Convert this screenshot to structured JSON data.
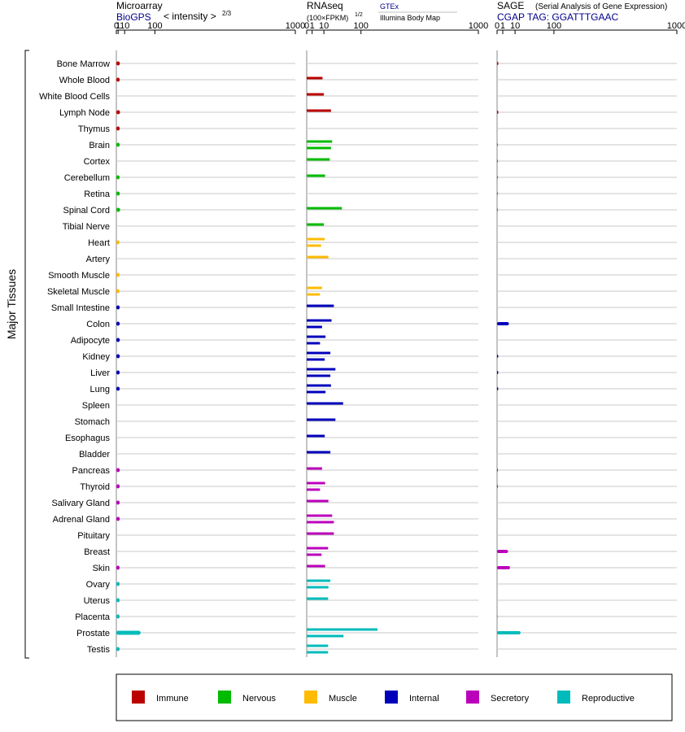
{
  "chart_data": {
    "type": "bar",
    "orientation": "horizontal",
    "scale": "power",
    "y_axis_label": "Major Tissues",
    "tissues": [
      "Bone Marrow",
      "Whole Blood",
      "White Blood Cells",
      "Lymph Node",
      "Thymus",
      "Brain",
      "Cortex",
      "Cerebellum",
      "Retina",
      "Spinal Cord",
      "Tibial Nerve",
      "Heart",
      "Artery",
      "Smooth Muscle",
      "Skeletal Muscle",
      "Small Intestine",
      "Colon",
      "Adipocyte",
      "Kidney",
      "Liver",
      "Lung",
      "Spleen",
      "Stomach",
      "Esophagus",
      "Bladder",
      "Pancreas",
      "Thyroid",
      "Salivary Gland",
      "Adrenal Gland",
      "Pituitary",
      "Breast",
      "Skin",
      "Ovary",
      "Uterus",
      "Placenta",
      "Prostate",
      "Testis"
    ],
    "tissue_category": [
      "Immune",
      "Immune",
      "Immune",
      "Immune",
      "Immune",
      "Nervous",
      "Nervous",
      "Nervous",
      "Nervous",
      "Nervous",
      "Nervous",
      "Muscle",
      "Muscle",
      "Muscle",
      "Muscle",
      "Internal",
      "Internal",
      "Internal",
      "Internal",
      "Internal",
      "Internal",
      "Internal",
      "Internal",
      "Internal",
      "Internal",
      "Secretory",
      "Secretory",
      "Secretory",
      "Secretory",
      "Secretory",
      "Secretory",
      "Secretory",
      "Reproductive",
      "Reproductive",
      "Reproductive",
      "Reproductive",
      "Reproductive"
    ],
    "legend": [
      {
        "name": "Immune",
        "color": "#bb0000"
      },
      {
        "name": "Nervous",
        "color": "#00bb00"
      },
      {
        "name": "Muscle",
        "color": "#ffbb00"
      },
      {
        "name": "Internal",
        "color": "#0000bb"
      },
      {
        "name": "Secretory",
        "color": "#bb00bb"
      },
      {
        "name": "Reproductive",
        "color": "#00bbbb"
      }
    ],
    "panels": [
      {
        "id": "microarray",
        "title": "Microarray",
        "source": "BioGPS",
        "unit_text": "< intensity >",
        "exponent_text": "2/3",
        "power": 0.6667,
        "ticks": [
          0,
          1,
          10,
          100,
          1000
        ],
        "tick_labels": [
          "0",
          "1",
          "10",
          "100",
          "1000"
        ],
        "xlim": [
          0,
          1000
        ],
        "values": [
          [
            2.8
          ],
          [
            2.6
          ],
          [],
          [
            3.0
          ],
          [
            2.6
          ],
          [
            2.6
          ],
          [],
          [
            2.5
          ],
          [
            2.7
          ],
          [
            3.1
          ],
          [],
          [
            2.3
          ],
          [],
          [
            2.5
          ],
          [
            2.4
          ],
          [
            2.6
          ],
          [
            2.6
          ],
          [
            2.7
          ],
          [
            2.7
          ],
          [
            2.6
          ],
          [
            2.6
          ],
          [],
          [],
          [],
          [],
          [
            2.7
          ],
          [
            2.6
          ],
          [
            2.6
          ],
          [
            2.7
          ],
          [],
          [],
          [
            2.5
          ],
          [
            2.5
          ],
          [
            2.5
          ],
          [
            2.5
          ],
          [
            50
          ],
          [
            2.5
          ]
        ]
      },
      {
        "id": "rnaseq",
        "title": "RNAseq",
        "unit_text": "(100×FPKM)",
        "exponent_text": "1/2",
        "source_top": "GTEx",
        "source_bottom": "Illumina Body Map",
        "power": 0.5,
        "ticks": [
          0,
          1,
          10,
          100,
          1000
        ],
        "tick_labels": [
          "0",
          "1",
          "10",
          "100",
          "1000"
        ],
        "xlim": [
          0,
          1000
        ],
        "values": [
          [],
          [
            8.5
          ],
          [
            10
          ],
          [
            20
          ],
          [],
          [
            22,
            20
          ],
          [
            18
          ],
          [
            11.5
          ],
          [],
          [
            42
          ],
          [
            10
          ],
          [
            11,
            7
          ],
          [
            16
          ],
          [],
          [
            8,
            6
          ],
          [
            25
          ],
          [
            21,
            8
          ],
          [
            12,
            6
          ],
          [
            19,
            11
          ],
          [
            28,
            19
          ],
          [
            20,
            12
          ],
          [
            45
          ],
          [
            28
          ],
          [
            11
          ],
          [
            19
          ],
          [
            8
          ],
          [
            11.5,
            6
          ],
          [
            16
          ],
          [
            22,
            25
          ],
          [
            25
          ],
          [
            15.5,
            7.5
          ],
          [
            11.5
          ],
          [
            19,
            16
          ],
          [
            15.5
          ],
          [],
          [
            170,
            46
          ],
          [
            15.5,
            15.5
          ]
        ]
      },
      {
        "id": "sage",
        "title": "SAGE",
        "subtitle": "(Serial Analysis of Gene Expression)",
        "source": "CGAP TAG: GGATTTGAAC",
        "power": 0.5,
        "ticks": [
          0,
          1,
          10,
          100,
          1000
        ],
        "tick_labels": [
          "0",
          "1",
          "10",
          "100",
          "1000"
        ],
        "xlim": [
          0,
          1000
        ],
        "values": [
          [
            0.05
          ],
          [],
          [],
          [
            0.05
          ],
          [],
          [
            0.02
          ],
          [
            0.02
          ],
          [
            0.02
          ],
          [
            0.02
          ],
          [
            0.02
          ],
          [],
          [
            0.01
          ],
          [],
          [],
          [
            0.01
          ],
          [],
          [
            4.3
          ],
          [],
          [
            0.04
          ],
          [
            0.04
          ],
          [
            0.04
          ],
          [],
          [],
          [],
          [],
          [
            0.02
          ],
          [
            0.02
          ],
          [],
          [],
          [],
          [
            3.7
          ],
          [
            5.2
          ],
          [],
          [],
          [
            0.01
          ],
          [
            17
          ],
          []
        ]
      }
    ]
  }
}
